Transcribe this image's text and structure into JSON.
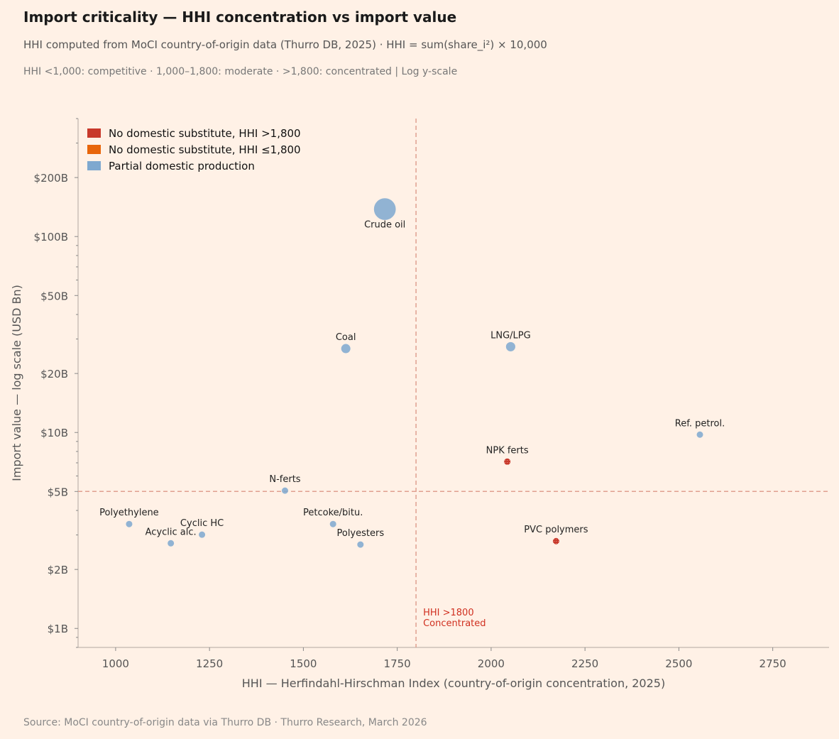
{
  "title": "Import criticality — HHI concentration vs import value",
  "subtitle": "HHI computed from MoCI country-of-origin data (Thurro DB, 2025) · HHI = sum(share_i²) × 10,000",
  "note": "HHI <1,000: competitive · 1,000–1,800: moderate · >1,800: concentrated  |  Log y-scale",
  "source": "Source: MoCI country-of-origin data via Thurro DB · Thurro Research, March 2026",
  "chart_data": {
    "type": "scatter",
    "xlabel": "HHI — Herfindahl-Hirschman Index (country-of-origin concentration, 2025)",
    "ylabel": "Import value — log scale (USD Bn)",
    "xlim": [
      900,
      2900
    ],
    "ylim": [
      0.8,
      400
    ],
    "yscale": "log",
    "grid": false,
    "xticks": [
      1000,
      1250,
      1500,
      1750,
      2000,
      2250,
      2500,
      2750
    ],
    "yticks": [
      1,
      2,
      5,
      10,
      20,
      50,
      100,
      200
    ],
    "ytick_labels": [
      "$1B",
      "$2B",
      "$5B",
      "$10B",
      "$20B",
      "$50B",
      "$100B",
      "$200B"
    ],
    "legend_placement": "top-left",
    "legend": [
      {
        "label": "No domestic substitute, HHI >1,800",
        "color": "#c8392b"
      },
      {
        "label": "No domestic substitute, HHI ≤1,800",
        "color": "#e8650a"
      },
      {
        "label": "Partial domestic production",
        "color": "#7ea8cf"
      }
    ],
    "reference_lines": [
      {
        "axis": "x",
        "value": 1800,
        "label": "HHI >1800\nConcentrated",
        "color": "#e0a090"
      },
      {
        "axis": "y",
        "value": 5,
        "color": "#e0a090"
      }
    ],
    "points": [
      {
        "label": "Crude oil",
        "x": 1717,
        "y": 138,
        "group": 2
      },
      {
        "label": "Coal",
        "x": 1613,
        "y": 26.8,
        "group": 2
      },
      {
        "label": "LNG/LPG",
        "x": 2052,
        "y": 27.4,
        "group": 2
      },
      {
        "label": "Ref. petrol.",
        "x": 2556,
        "y": 9.75,
        "group": 2
      },
      {
        "label": "NPK ferts",
        "x": 2043,
        "y": 7.1,
        "group": 0
      },
      {
        "label": "N-ferts",
        "x": 1451,
        "y": 5.05,
        "group": 2
      },
      {
        "label": "Polyethylene",
        "x": 1036,
        "y": 3.41,
        "group": 2
      },
      {
        "label": "Acyclic alc.",
        "x": 1147,
        "y": 2.72,
        "group": 2
      },
      {
        "label": "Cyclic HC",
        "x": 1230,
        "y": 3.01,
        "group": 2
      },
      {
        "label": "Petcoke/bitu.",
        "x": 1579,
        "y": 3.41,
        "group": 2
      },
      {
        "label": "Polyesters",
        "x": 1652,
        "y": 2.68,
        "group": 2
      },
      {
        "label": "PVC polymers",
        "x": 2173,
        "y": 2.79,
        "group": 0
      }
    ]
  }
}
